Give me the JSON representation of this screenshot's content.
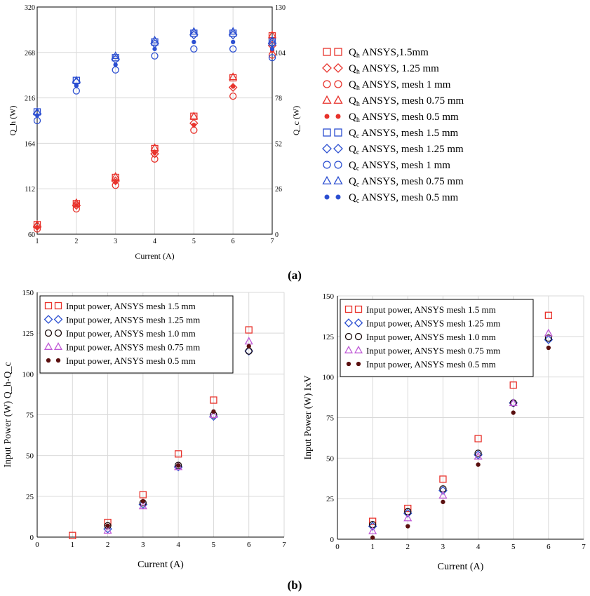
{
  "panel_labels": {
    "a": "(a)",
    "b": "(b)"
  },
  "colors": {
    "red": "#e8322b",
    "blue": "#2c4fd1",
    "black": "#1a0a0a",
    "violet": "#c05bd6",
    "darkred": "#5a0f0f"
  },
  "chart_data": [
    {
      "id": "a",
      "type": "scatter",
      "xlabel": "Current (A)",
      "ylabel_left": "Q_h (W)",
      "ylabel_right": "Q_c (W)",
      "xlim": [
        1,
        7
      ],
      "ylim_left": [
        60,
        320
      ],
      "ylim_right": [
        0,
        130
      ],
      "xticks": [
        1,
        2,
        3,
        4,
        5,
        6,
        7
      ],
      "yticks_left": [
        60,
        112,
        164,
        216,
        268,
        320
      ],
      "yticks_right": [
        0,
        26,
        52,
        78,
        104,
        130
      ],
      "legend": [
        {
          "sym": "Q",
          "sub": "h",
          "text": "ANSYS,1.5mm",
          "marker": "square",
          "color": "#e8322b"
        },
        {
          "sym": "Q",
          "sub": "h",
          "text": "ANSYS, 1.25 mm",
          "marker": "diamond",
          "color": "#e8322b"
        },
        {
          "sym": "Q",
          "sub": "h",
          "text": "ANSYS, mesh 1 mm",
          "marker": "circle",
          "color": "#e8322b"
        },
        {
          "sym": "Q",
          "sub": "h",
          "text": "ANSYS, mesh 0.75 mm",
          "marker": "triangle",
          "color": "#e8322b"
        },
        {
          "sym": "Q",
          "sub": "h",
          "text": "ANSYS, mesh 0.5 mm",
          "marker": "dot",
          "color": "#e8322b"
        },
        {
          "sym": "Q",
          "sub": "c",
          "text": "ANSYS, mesh 1.5 mm",
          "marker": "square",
          "color": "#2c4fd1"
        },
        {
          "sym": "Q",
          "sub": "c",
          "text": "ANSYS, mesh 1.25 mm",
          "marker": "diamond",
          "color": "#2c4fd1"
        },
        {
          "sym": "Q",
          "sub": "c",
          "text": "ANSYS, mesh 1 mm",
          "marker": "circle",
          "color": "#2c4fd1"
        },
        {
          "sym": "Q",
          "sub": "c",
          "text": "ANSYS, mesh 0.75 mm",
          "marker": "triangle",
          "color": "#2c4fd1"
        },
        {
          "sym": "Q",
          "sub": "c",
          "text": "ANSYS, mesh 0.5 mm",
          "marker": "dot",
          "color": "#2c4fd1"
        }
      ],
      "series": [
        {
          "axis": "left",
          "marker": "square",
          "color": "#e8322b",
          "x": [
            1,
            2,
            3,
            4,
            5,
            6,
            7
          ],
          "y": [
            71,
            95,
            125,
            158,
            195,
            239,
            287
          ]
        },
        {
          "axis": "left",
          "marker": "diamond",
          "color": "#e8322b",
          "x": [
            1,
            2,
            3,
            4,
            5,
            6,
            7
          ],
          "y": [
            69,
            93,
            121,
            152,
            187,
            228,
            276
          ]
        },
        {
          "axis": "left",
          "marker": "circle",
          "color": "#e8322b",
          "x": [
            1,
            2,
            3,
            4,
            5,
            6,
            7
          ],
          "y": [
            66,
            89,
            116,
            146,
            179,
            218,
            265
          ]
        },
        {
          "axis": "left",
          "marker": "triangle",
          "color": "#e8322b",
          "x": [
            1,
            2,
            3,
            4,
            5,
            6,
            7
          ],
          "y": [
            71,
            96,
            126,
            159,
            195,
            240,
            288
          ]
        },
        {
          "axis": "left",
          "marker": "dot",
          "color": "#e8322b",
          "x": [
            1,
            2,
            3,
            4,
            5,
            6,
            7
          ],
          "y": [
            68,
            93,
            120,
            153,
            185,
            229,
            270
          ]
        },
        {
          "axis": "right",
          "marker": "square",
          "color": "#2c4fd1",
          "x": [
            1,
            2,
            3,
            4,
            5,
            6,
            7
          ],
          "y": [
            70,
            88,
            101,
            110,
            115,
            115,
            110
          ]
        },
        {
          "axis": "right",
          "marker": "diamond",
          "color": "#2c4fd1",
          "x": [
            1,
            2,
            3,
            4,
            5,
            6,
            7
          ],
          "y": [
            69,
            87,
            100,
            109,
            114,
            114,
            109
          ]
        },
        {
          "axis": "right",
          "marker": "circle",
          "color": "#2c4fd1",
          "x": [
            1,
            2,
            3,
            4,
            5,
            6,
            7
          ],
          "y": [
            65,
            82,
            94,
            102,
            106,
            106,
            101
          ]
        },
        {
          "axis": "right",
          "marker": "triangle",
          "color": "#2c4fd1",
          "x": [
            1,
            2,
            3,
            4,
            5,
            6,
            7
          ],
          "y": [
            70,
            88,
            102,
            111,
            116,
            116,
            111
          ]
        },
        {
          "axis": "right",
          "marker": "dot",
          "color": "#2c4fd1",
          "x": [
            1,
            2,
            3,
            4,
            5,
            6,
            7
          ],
          "y": [
            68,
            85,
            97,
            106,
            110,
            110,
            106
          ]
        }
      ]
    },
    {
      "id": "b1",
      "type": "scatter",
      "xlabel": "Current (A)",
      "ylabel": "Input Power (W) Q_h-Q_c",
      "xlim": [
        0,
        7
      ],
      "ylim": [
        0,
        150
      ],
      "xticks": [
        0,
        1,
        2,
        3,
        4,
        5,
        6,
        7
      ],
      "yticks": [
        0,
        25,
        50,
        75,
        100,
        125,
        150
      ],
      "legend_placement": "top-left",
      "series": [
        {
          "name": "Input power, ANSYS mesh 1.5 mm",
          "marker": "square",
          "color": "#e8322b",
          "x": [
            1,
            2,
            3,
            4,
            5,
            6
          ],
          "y": [
            1,
            9,
            26,
            51,
            84,
            127
          ]
        },
        {
          "name": "Input power, ANSYS mesh 1.25 mm",
          "marker": "diamond",
          "color": "#2c4fd1",
          "x": [
            2,
            3,
            4,
            5,
            6
          ],
          "y": [
            5,
            20,
            43,
            74,
            114
          ]
        },
        {
          "name": "Input power, ANSYS mesh 1.0 mm",
          "marker": "circle",
          "color": "#1a0a0a",
          "x": [
            2,
            3,
            4,
            5,
            6
          ],
          "y": [
            7,
            21,
            44,
            75,
            114
          ]
        },
        {
          "name": "Input power, ANSYS mesh 0.75 mm",
          "marker": "triangle",
          "color": "#c05bd6",
          "x": [
            2,
            3,
            4,
            5,
            6
          ],
          "y": [
            4,
            19,
            43,
            75,
            120
          ]
        },
        {
          "name": "Input power, ANSYS mesh 0.5 mm",
          "marker": "dot",
          "color": "#5a0f0f",
          "x": [
            2,
            3,
            4,
            5,
            6
          ],
          "y": [
            7,
            22,
            44,
            77,
            117
          ]
        }
      ]
    },
    {
      "id": "b2",
      "type": "scatter",
      "xlabel": "Current (A)",
      "ylabel": "Input Power (W) IxV",
      "xlim": [
        0,
        7
      ],
      "ylim": [
        0,
        150
      ],
      "xticks": [
        0,
        1,
        2,
        3,
        4,
        5,
        6,
        7
      ],
      "yticks": [
        0,
        25,
        50,
        75,
        100,
        125,
        150
      ],
      "legend_placement": "top-left",
      "series": [
        {
          "name": "Input power, ANSYS mesh 1.5 mm",
          "marker": "square",
          "color": "#e8322b",
          "x": [
            1,
            2,
            3,
            4,
            5,
            6
          ],
          "y": [
            11,
            19,
            37,
            62,
            95,
            138
          ]
        },
        {
          "name": "Input power, ANSYS mesh 1.25 mm",
          "marker": "diamond",
          "color": "#2c4fd1",
          "x": [
            1,
            2,
            3,
            4,
            5,
            6
          ],
          "y": [
            8,
            16,
            30,
            52,
            84,
            123
          ]
        },
        {
          "name": "Input power, ANSYS mesh 1.0 mm",
          "marker": "circle",
          "color": "#1a0a0a",
          "x": [
            1,
            2,
            3,
            4,
            5,
            6
          ],
          "y": [
            9,
            17,
            31,
            53,
            84,
            124
          ]
        },
        {
          "name": "Input power, ANSYS mesh 0.75 mm",
          "marker": "triangle",
          "color": "#c05bd6",
          "x": [
            1,
            2,
            3,
            4,
            5,
            6
          ],
          "y": [
            5,
            13,
            27,
            51,
            84,
            127
          ]
        },
        {
          "name": "Input power, ANSYS mesh 0.5 mm",
          "marker": "dot",
          "color": "#5a0f0f",
          "x": [
            1,
            2,
            3,
            4,
            5,
            6
          ],
          "y": [
            1,
            8,
            23,
            46,
            78,
            118
          ]
        }
      ]
    }
  ]
}
